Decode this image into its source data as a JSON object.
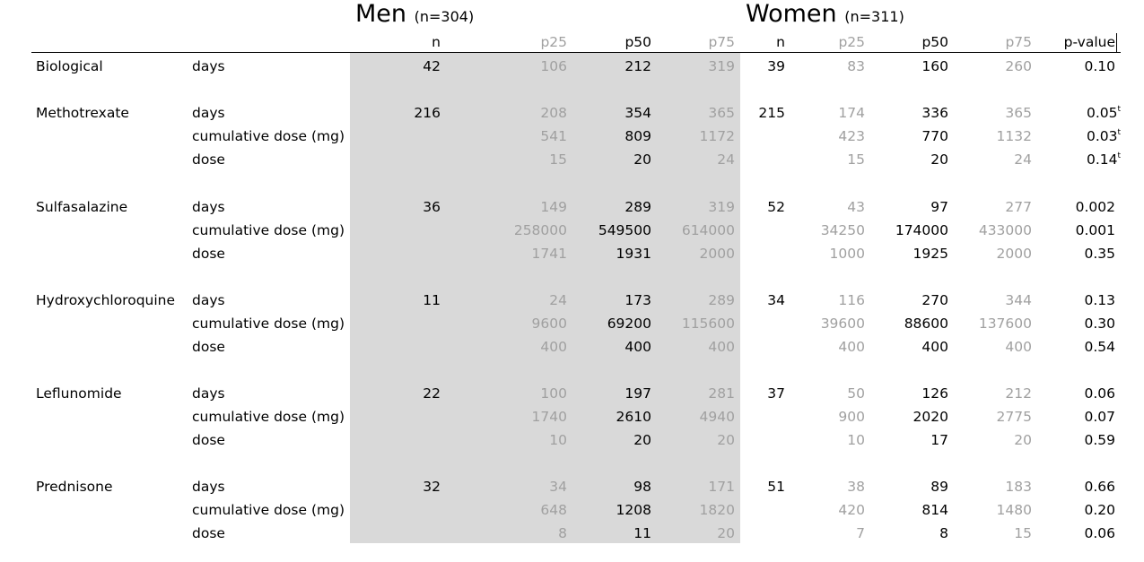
{
  "groups": [
    {
      "label": "Men",
      "sub": "(n=304)"
    },
    {
      "label": "Women",
      "sub": "(n=311)"
    }
  ],
  "headers": [
    "n",
    "p25",
    "p50",
    "p75",
    "n",
    "p25",
    "p50",
    "p75",
    "p-value"
  ],
  "rows": [
    {
      "drug": "Biological",
      "measure": "days",
      "cells": [
        "42",
        "106",
        "212",
        "319",
        "39",
        "83",
        "160",
        "260",
        "0.10"
      ],
      "sup": ""
    },
    {
      "drug": "Methotrexate",
      "measure": "days",
      "cells": [
        "216",
        "208",
        "354",
        "365",
        "215",
        "174",
        "336",
        "365",
        "0.05"
      ],
      "sup": "t"
    },
    {
      "drug": "",
      "measure": "cumulative dose (mg)",
      "cells": [
        "",
        "541",
        "809",
        "1172",
        "",
        "423",
        "770",
        "1132",
        "0.03"
      ],
      "sup": "t"
    },
    {
      "drug": "",
      "measure": "dose",
      "cells": [
        "",
        "15",
        "20",
        "24",
        "",
        "15",
        "20",
        "24",
        "0.14"
      ],
      "sup": "t"
    },
    {
      "drug": "Sulfasalazine",
      "measure": "days",
      "cells": [
        "36",
        "149",
        "289",
        "319",
        "52",
        "43",
        "97",
        "277",
        "0.002"
      ],
      "sup": ""
    },
    {
      "drug": "",
      "measure": "cumulative dose (mg)",
      "cells": [
        "",
        "258000",
        "549500",
        "614000",
        "",
        "34250",
        "174000",
        "433000",
        "0.001"
      ],
      "sup": ""
    },
    {
      "drug": "",
      "measure": "dose",
      "cells": [
        "",
        "1741",
        "1931",
        "2000",
        "",
        "1000",
        "1925",
        "2000",
        "0.35"
      ],
      "sup": ""
    },
    {
      "drug": "Hydroxychloroquine",
      "measure": "days",
      "cells": [
        "11",
        "24",
        "173",
        "289",
        "34",
        "116",
        "270",
        "344",
        "0.13"
      ],
      "sup": ""
    },
    {
      "drug": "",
      "measure": "cumulative dose (mg)",
      "cells": [
        "",
        "9600",
        "69200",
        "115600",
        "",
        "39600",
        "88600",
        "137600",
        "0.30"
      ],
      "sup": ""
    },
    {
      "drug": "",
      "measure": "dose",
      "cells": [
        "",
        "400",
        "400",
        "400",
        "",
        "400",
        "400",
        "400",
        "0.54"
      ],
      "sup": ""
    },
    {
      "drug": "Leflunomide",
      "measure": "days",
      "cells": [
        "22",
        "100",
        "197",
        "281",
        "37",
        "50",
        "126",
        "212",
        "0.06"
      ],
      "sup": ""
    },
    {
      "drug": "",
      "measure": "cumulative dose (mg)",
      "cells": [
        "",
        "1740",
        "2610",
        "4940",
        "",
        "900",
        "2020",
        "2775",
        "0.07"
      ],
      "sup": ""
    },
    {
      "drug": "",
      "measure": "dose",
      "cells": [
        "",
        "10",
        "20",
        "20",
        "",
        "10",
        "17",
        "20",
        "0.59"
      ],
      "sup": ""
    },
    {
      "drug": "Prednisone",
      "measure": "days",
      "cells": [
        "32",
        "34",
        "98",
        "171",
        "51",
        "38",
        "89",
        "183",
        "0.66"
      ],
      "sup": ""
    },
    {
      "drug": "",
      "measure": "cumulative dose (mg)",
      "cells": [
        "",
        "648",
        "1208",
        "1820",
        "",
        "420",
        "814",
        "1480",
        "0.20"
      ],
      "sup": ""
    },
    {
      "drug": "",
      "measure": "dose",
      "cells": [
        "",
        "8",
        "11",
        "20",
        "",
        "7",
        "8",
        "15",
        "0.06"
      ],
      "sup": ""
    }
  ]
}
